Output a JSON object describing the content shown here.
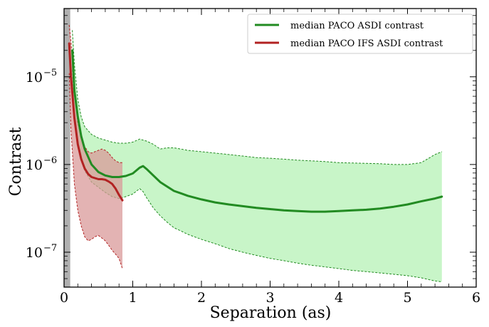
{
  "chart_data": {
    "type": "line",
    "title": "",
    "xlabel": "Separation (as)",
    "ylabel": "Contrast",
    "xlim": [
      0,
      6
    ],
    "ylim": [
      4e-08,
      6e-05
    ],
    "yscale": "log",
    "grid": false,
    "legend_position": "top-right",
    "x_ticks": [
      0,
      1,
      2,
      3,
      4,
      5,
      6
    ],
    "y_ticks": [
      {
        "value": 1e-07,
        "base": "10",
        "exp": "−7"
      },
      {
        "value": 1e-06,
        "base": "10",
        "exp": "−6"
      },
      {
        "value": 1e-05,
        "base": "10",
        "exp": "−5"
      }
    ],
    "shaded_region": {
      "x": [
        0,
        0.09
      ],
      "color": "#b0b0b0"
    },
    "series": [
      {
        "name": "median PACO ASDI contrast",
        "color": "#228b22",
        "band_color": "#c8f5c8",
        "x": [
          0.12,
          0.15,
          0.2,
          0.25,
          0.3,
          0.4,
          0.5,
          0.6,
          0.7,
          0.8,
          0.9,
          1.0,
          1.1,
          1.15,
          1.2,
          1.3,
          1.4,
          1.5,
          1.6,
          1.7,
          1.8,
          2.0,
          2.2,
          2.4,
          2.6,
          2.8,
          3.0,
          3.2,
          3.4,
          3.6,
          3.8,
          4.0,
          4.2,
          4.4,
          4.6,
          4.8,
          5.0,
          5.2,
          5.4,
          5.5
        ],
        "median": [
          2e-05,
          7e-06,
          3.5e-06,
          2.1e-06,
          1.5e-06,
          1e-06,
          8.2e-07,
          7.5e-07,
          7.2e-07,
          7.2e-07,
          7.4e-07,
          7.9e-07,
          9.2e-07,
          9.6e-07,
          8.9e-07,
          7.5e-07,
          6.3e-07,
          5.6e-07,
          5e-07,
          4.7e-07,
          4.4e-07,
          4e-07,
          3.7e-07,
          3.5e-07,
          3.35e-07,
          3.2e-07,
          3.1e-07,
          3e-07,
          2.95e-07,
          2.9e-07,
          2.9e-07,
          2.95e-07,
          3e-07,
          3.05e-07,
          3.15e-07,
          3.3e-07,
          3.5e-07,
          3.8e-07,
          4.1e-07,
          4.3e-07
        ],
        "upper": [
          3.4e-05,
          1.4e-05,
          5.5e-06,
          3.5e-06,
          2.7e-06,
          2.2e-06,
          2e-06,
          1.9e-06,
          1.8e-06,
          1.75e-06,
          1.75e-06,
          1.8e-06,
          1.95e-06,
          1.9e-06,
          1.85e-06,
          1.7e-06,
          1.5e-06,
          1.55e-06,
          1.55e-06,
          1.5e-06,
          1.45e-06,
          1.4e-06,
          1.35e-06,
          1.3e-06,
          1.25e-06,
          1.2e-06,
          1.18e-06,
          1.15e-06,
          1.12e-06,
          1.1e-06,
          1.08e-06,
          1.05e-06,
          1.04e-06,
          1.03e-06,
          1.02e-06,
          1e-06,
          1e-06,
          1.05e-06,
          1.3e-06,
          1.4e-06
        ],
        "lower": [
          1.2e-05,
          3.5e-06,
          1.7e-06,
          1.1e-06,
          8.5e-07,
          6.3e-07,
          5.5e-07,
          4.8e-07,
          4.3e-07,
          4.1e-07,
          4.3e-07,
          4.6e-07,
          5.3e-07,
          4.9e-07,
          4.2e-07,
          3.2e-07,
          2.6e-07,
          2.2e-07,
          1.9e-07,
          1.75e-07,
          1.6e-07,
          1.4e-07,
          1.25e-07,
          1.1e-07,
          1e-07,
          9.2e-08,
          8.5e-08,
          8e-08,
          7.5e-08,
          7.1e-08,
          6.8e-08,
          6.5e-08,
          6.2e-08,
          6e-08,
          5.8e-08,
          5.6e-08,
          5.4e-08,
          5.1e-08,
          4.7e-08,
          4.6e-08
        ]
      },
      {
        "name": "median PACO IFS ASDI contrast",
        "color": "#b22222",
        "band_color": "#d99a9a",
        "x": [
          0.075,
          0.1,
          0.15,
          0.2,
          0.25,
          0.3,
          0.35,
          0.4,
          0.45,
          0.5,
          0.55,
          0.6,
          0.65,
          0.7,
          0.75,
          0.8,
          0.85
        ],
        "median": [
          2.4e-05,
          1e-05,
          3.4e-06,
          1.7e-06,
          1.15e-06,
          9e-07,
          7.8e-07,
          7.2e-07,
          7e-07,
          6.8e-07,
          6.8e-07,
          6.7e-07,
          6.4e-07,
          6e-07,
          5.3e-07,
          4.5e-07,
          3.9e-07
        ],
        "upper": [
          3.9e-05,
          2.5e-05,
          7e-06,
          3e-06,
          2.1e-06,
          1.6e-06,
          1.4e-06,
          1.35e-06,
          1.4e-06,
          1.45e-06,
          1.5e-06,
          1.45e-06,
          1.35e-06,
          1.2e-06,
          1.1e-06,
          1.05e-06,
          1.05e-06
        ],
        "lower": [
          1.1e-05,
          2.5e-06,
          6e-07,
          3e-07,
          2e-07,
          1.5e-07,
          1.35e-07,
          1.4e-07,
          1.5e-07,
          1.55e-07,
          1.45e-07,
          1.35e-07,
          1.2e-07,
          1.05e-07,
          9.5e-08,
          8.5e-08,
          6.5e-08
        ]
      }
    ]
  }
}
